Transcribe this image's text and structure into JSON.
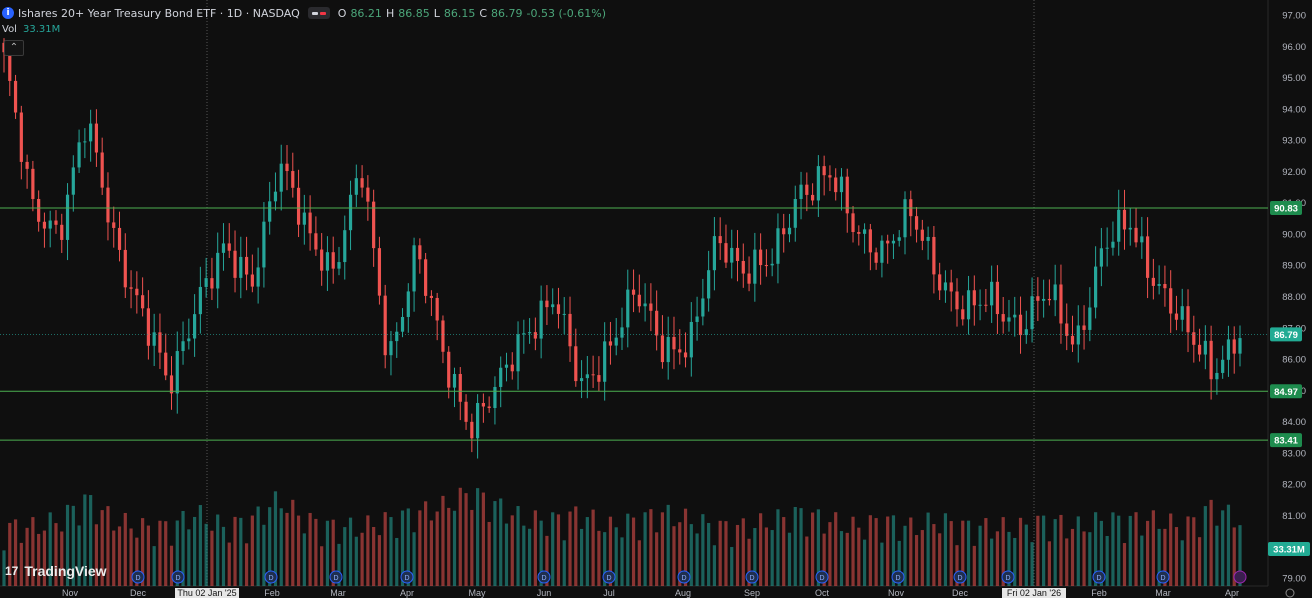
{
  "legend": {
    "symbol_name": "Ishares 20+ Year Treasury Bond ETF · 1D · NASDAQ",
    "symbol_icon": "info-icon",
    "open_label": "O",
    "open": "86.21",
    "high_label": "H",
    "high": "86.85",
    "low_label": "L",
    "low": "86.15",
    "close_label": "C",
    "close": "86.79",
    "change": "-0.53 (-0.61%)"
  },
  "volume": {
    "label": "Vol",
    "value": "33.31M"
  },
  "collapse_icon": "chevron-up-icon",
  "brand": "TradingView",
  "colors": {
    "up": "#26a69a",
    "down": "#ef5350",
    "hline": "#4caf50",
    "accent_label_bg": "#1e8c4e"
  },
  "chart_data": {
    "type": "candlestick",
    "title": "Ishares 20+ Year Treasury Bond ETF · 1D · NASDAQ",
    "ylim": [
      79.0,
      97.0
    ],
    "y_ticks": [
      "97.00",
      "96.00",
      "95.00",
      "94.00",
      "93.00",
      "92.00",
      "91.00",
      "90.00",
      "89.00",
      "88.00",
      "87.00",
      "86.00",
      "85.00",
      "84.00",
      "83.00",
      "82.00",
      "81.00",
      "80.00",
      "79.00"
    ],
    "x_ticks": [
      "Nov",
      "Dec",
      "Thu 02 Jan '25",
      "Feb",
      "Mar",
      "Apr",
      "May",
      "Jun",
      "Jul",
      "Aug",
      "Sep",
      "Oct",
      "Nov",
      "Dec",
      "Fri 02 Jan '26",
      "Feb",
      "Mar",
      "Apr"
    ],
    "highlighted_x_ticks": [
      "Thu 02 Jan '25",
      "Fri 02 Jan '26"
    ],
    "horizontal_levels": [
      {
        "label": "90.83",
        "value": 90.83
      },
      {
        "label": "84.97",
        "value": 84.97
      },
      {
        "label": "83.41",
        "value": 83.41
      }
    ],
    "last_price_label": {
      "label": "86.79",
      "value": 86.79
    },
    "volume_label": {
      "label": "33.31M"
    },
    "grid": false,
    "price_path": [
      {
        "x": "Oct '24",
        "y": 95.6
      },
      {
        "x": "Nov",
        "y": 90.8
      },
      {
        "x": "Nov",
        "y": 90.2
      },
      {
        "x": "Dec",
        "y": 93.5
      },
      {
        "x": "Dec",
        "y": 90.0
      },
      {
        "x": "Thu 02 Jan '25",
        "y": 87.5
      },
      {
        "x": "Thu 02 Jan '25",
        "y": 85.0
      },
      {
        "x": "Feb",
        "y": 88.0
      },
      {
        "x": "Feb",
        "y": 89.3
      },
      {
        "x": "Feb",
        "y": 88.5
      },
      {
        "x": "Mar",
        "y": 92.3
      },
      {
        "x": "Mar",
        "y": 90.0
      },
      {
        "x": "Mar",
        "y": 89.0
      },
      {
        "x": "Apr",
        "y": 92.0
      },
      {
        "x": "Apr",
        "y": 86.0
      },
      {
        "x": "Apr",
        "y": 89.5
      },
      {
        "x": "May",
        "y": 86.0
      },
      {
        "x": "May",
        "y": 84.0
      },
      {
        "x": "Jun",
        "y": 85.0
      },
      {
        "x": "Jun",
        "y": 87.0
      },
      {
        "x": "Jul",
        "y": 88.0
      },
      {
        "x": "Jul",
        "y": 85.0
      },
      {
        "x": "Aug",
        "y": 86.5
      },
      {
        "x": "Aug",
        "y": 88.0
      },
      {
        "x": "Aug",
        "y": 86.5
      },
      {
        "x": "Sep",
        "y": 86.5
      },
      {
        "x": "Sep",
        "y": 89.8
      },
      {
        "x": "Sep",
        "y": 89.0
      },
      {
        "x": "Oct",
        "y": 89.0
      },
      {
        "x": "Oct",
        "y": 91.5
      },
      {
        "x": "Oct",
        "y": 92.0
      },
      {
        "x": "Nov",
        "y": 90.0
      },
      {
        "x": "Nov",
        "y": 89.6
      },
      {
        "x": "Dec",
        "y": 90.5
      },
      {
        "x": "Dec",
        "y": 88.8
      },
      {
        "x": "Dec",
        "y": 87.5
      },
      {
        "x": "Fri 02 Jan '26",
        "y": 87.8
      },
      {
        "x": "Fri 02 Jan '26",
        "y": 87.2
      },
      {
        "x": "Feb",
        "y": 88.0
      },
      {
        "x": "Feb",
        "y": 86.5
      },
      {
        "x": "Feb",
        "y": 89.5
      },
      {
        "x": "Mar",
        "y": 90.3
      },
      {
        "x": "Mar",
        "y": 88.5
      },
      {
        "x": "Mar",
        "y": 86.8
      },
      {
        "x": "Apr",
        "y": 85.8
      },
      {
        "x": "Apr",
        "y": 86.79
      }
    ],
    "relative_volume_profile": [
      0.5,
      0.5,
      0.6,
      0.9,
      0.6,
      0.5,
      0.5,
      0.7,
      0.5,
      0.6,
      0.9,
      0.6,
      0.5,
      0.5,
      0.6,
      0.7,
      0.8,
      1.0,
      0.8,
      0.6,
      0.6,
      0.7,
      0.5,
      0.6,
      0.7,
      0.6,
      0.5,
      0.5,
      0.6,
      0.7,
      0.6,
      0.5,
      0.6,
      0.5,
      0.6,
      0.5,
      0.5,
      0.5,
      0.6,
      0.5,
      0.6,
      0.6,
      0.6,
      0.5,
      0.8,
      0.6
    ]
  }
}
